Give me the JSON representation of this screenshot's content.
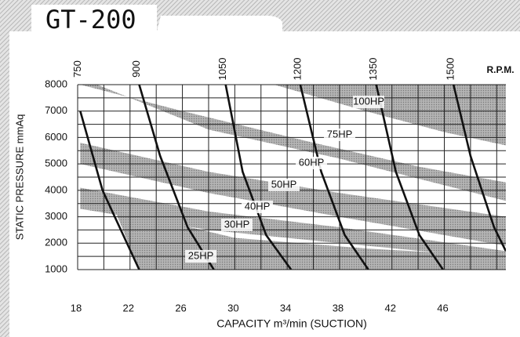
{
  "chart_data": {
    "type": "line",
    "title": "GT-200",
    "x_label": "CAPACITY m³/min (SUCTION)",
    "y_label": "STATIC PRESSURE mmAq",
    "series_label": "R.P.M.",
    "xlim": [
      18,
      50.7
    ],
    "ylim": [
      1000,
      8000
    ],
    "xticks": [
      18,
      22,
      26,
      30,
      34,
      38,
      42,
      46
    ],
    "yticks": [
      1000,
      2000,
      3000,
      4000,
      5000,
      6000,
      7000,
      8000
    ],
    "xgrid": [
      18,
      20,
      22,
      24,
      26,
      28,
      30,
      32,
      34,
      36,
      38,
      40,
      42,
      44,
      46,
      48,
      50
    ],
    "ygrid": [
      1000,
      1500,
      2000,
      2500,
      3000,
      3500,
      4000,
      4500,
      5000,
      5500,
      6000,
      6500,
      7000,
      7500,
      8000
    ],
    "grid": true,
    "color": "#111111",
    "band_color": "#b4b4b4",
    "series": [
      {
        "name": "750",
        "x": [
          18.2,
          19.9,
          22.7
        ],
        "values": [
          7000,
          4000,
          1000
        ]
      },
      {
        "name": "900",
        "x": [
          22.7,
          24.3,
          26.4,
          28.4
        ],
        "values": [
          8000,
          5300,
          2600,
          1000
        ]
      },
      {
        "name": "1050",
        "x": [
          29.3,
          30.6,
          32.4,
          34.3
        ],
        "values": [
          8000,
          4700,
          2300,
          1000
        ]
      },
      {
        "name": "1200",
        "x": [
          35.0,
          36.6,
          38.4,
          40.2
        ],
        "values": [
          8000,
          4700,
          2300,
          1000
        ]
      },
      {
        "name": "1350",
        "x": [
          40.8,
          42.3,
          44.1,
          45.9
        ],
        "values": [
          8000,
          4700,
          2300,
          1000
        ]
      },
      {
        "name": "1500",
        "x": [
          46.7,
          48.0,
          49.8,
          50.7
        ],
        "values": [
          8000,
          5300,
          2600,
          1700
        ]
      }
    ],
    "bands": [
      {
        "name": "100HP",
        "x": [
          33,
          50.7,
          50.7,
          46,
          40
        ],
        "values": [
          8000,
          8000,
          5700,
          6200,
          7000
        ]
      },
      {
        "name": "75HP",
        "x": [
          18.2,
          26,
          36,
          44,
          50.7,
          50.7,
          38,
          28,
          19.5
        ],
        "values": [
          8000,
          7000,
          5800,
          4900,
          4300,
          3600,
          5200,
          6300,
          8000
        ]
      },
      {
        "name": "60HP",
        "x": [
          18.2,
          28,
          38,
          50.7,
          50.7,
          38,
          28,
          18.2
        ],
        "values": [
          5800,
          4700,
          3900,
          3000,
          1900,
          3000,
          3900,
          5000
        ]
      },
      {
        "name": "40HP",
        "x": [
          18.2,
          28,
          38,
          50.7,
          50.7,
          38,
          28,
          18.2
        ],
        "values": [
          4100,
          3200,
          2600,
          1700,
          1400,
          2000,
          2500,
          3300
        ]
      },
      {
        "name": "25HP",
        "x": [
          20.8,
          30,
          40,
          50.7,
          50.7,
          22.7
        ],
        "values": [
          3300,
          2200,
          1800,
          1500,
          1000,
          1000
        ]
      }
    ],
    "band_labels": [
      "100HP",
      "75HP",
      "60HP",
      "50HP",
      "40HP",
      "30HP",
      "25HP"
    ]
  }
}
